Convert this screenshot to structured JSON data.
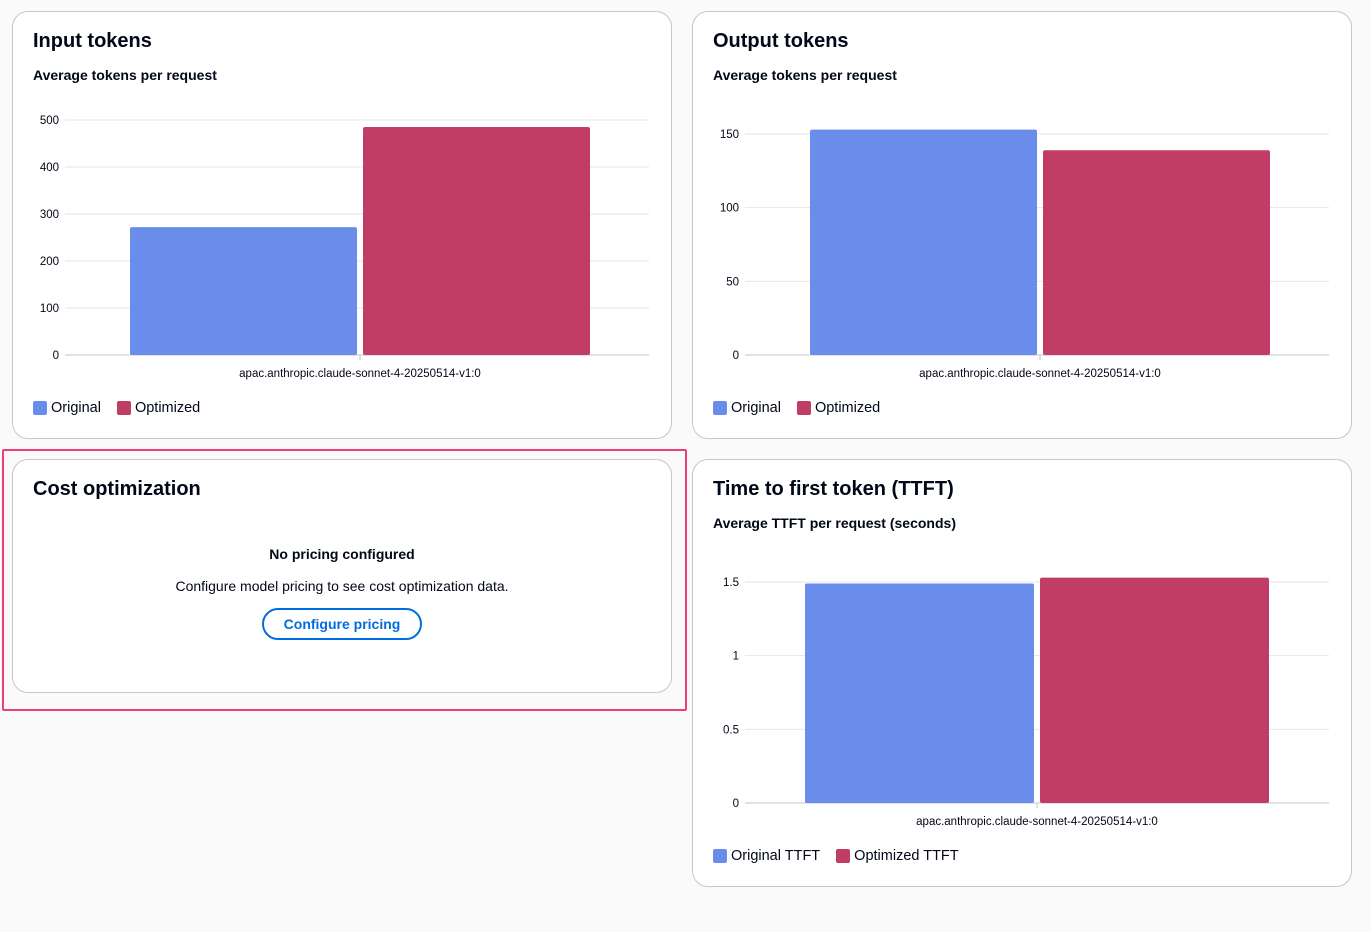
{
  "colors": {
    "original": "#6a8ceb",
    "optimized": "#c23d66",
    "gridline": "#e6e6e9",
    "axis_text": "#000716",
    "highlight": "#ec3e7a",
    "link": "#006ce0"
  },
  "input_tokens": {
    "title": "Input tokens",
    "subtitle": "Average tokens per request",
    "legend": [
      "Original",
      "Optimized"
    ]
  },
  "output_tokens": {
    "title": "Output tokens",
    "subtitle": "Average tokens per request",
    "legend": [
      "Original",
      "Optimized"
    ]
  },
  "cost_optimization": {
    "title": "Cost optimization",
    "empty_title": "No pricing configured",
    "empty_description": "Configure model pricing to see cost optimization data.",
    "button_label": "Configure pricing"
  },
  "ttft": {
    "title": "Time to first token (TTFT)",
    "subtitle": "Average TTFT per request (seconds)",
    "legend": [
      "Original TTFT",
      "Optimized TTFT"
    ]
  },
  "chart_data": [
    {
      "type": "bar",
      "title": "Input tokens",
      "subtitle": "Average tokens per request",
      "categories": [
        "apac.anthropic.claude-sonnet-4-20250514-v1:0"
      ],
      "series": [
        {
          "name": "Original",
          "values": [
            272
          ]
        },
        {
          "name": "Optimized",
          "values": [
            485
          ]
        }
      ],
      "ylim": [
        0,
        500
      ],
      "yticks": [
        "0",
        "100",
        "200",
        "300",
        "400",
        "500"
      ],
      "grid": true,
      "legend_position": "bottom-left"
    },
    {
      "type": "bar",
      "title": "Output tokens",
      "subtitle": "Average tokens per request",
      "categories": [
        "apac.anthropic.claude-sonnet-4-20250514-v1:0"
      ],
      "series": [
        {
          "name": "Original",
          "values": [
            153
          ]
        },
        {
          "name": "Optimized",
          "values": [
            139
          ]
        }
      ],
      "ylim": [
        0,
        150
      ],
      "yticks": [
        "0",
        "50",
        "100",
        "150"
      ],
      "grid": true,
      "legend_position": "bottom-left"
    },
    {
      "type": "bar",
      "title": "Time to first token (TTFT)",
      "subtitle": "Average TTFT per request (seconds)",
      "categories": [
        "apac.anthropic.claude-sonnet-4-20250514-v1:0"
      ],
      "series": [
        {
          "name": "Original TTFT",
          "values": [
            1.49
          ]
        },
        {
          "name": "Optimized TTFT",
          "values": [
            1.53
          ]
        }
      ],
      "ylim": [
        0,
        1.5
      ],
      "yticks": [
        "0",
        "0.5",
        "1",
        "1.5"
      ],
      "grid": true,
      "legend_position": "bottom-left"
    }
  ]
}
